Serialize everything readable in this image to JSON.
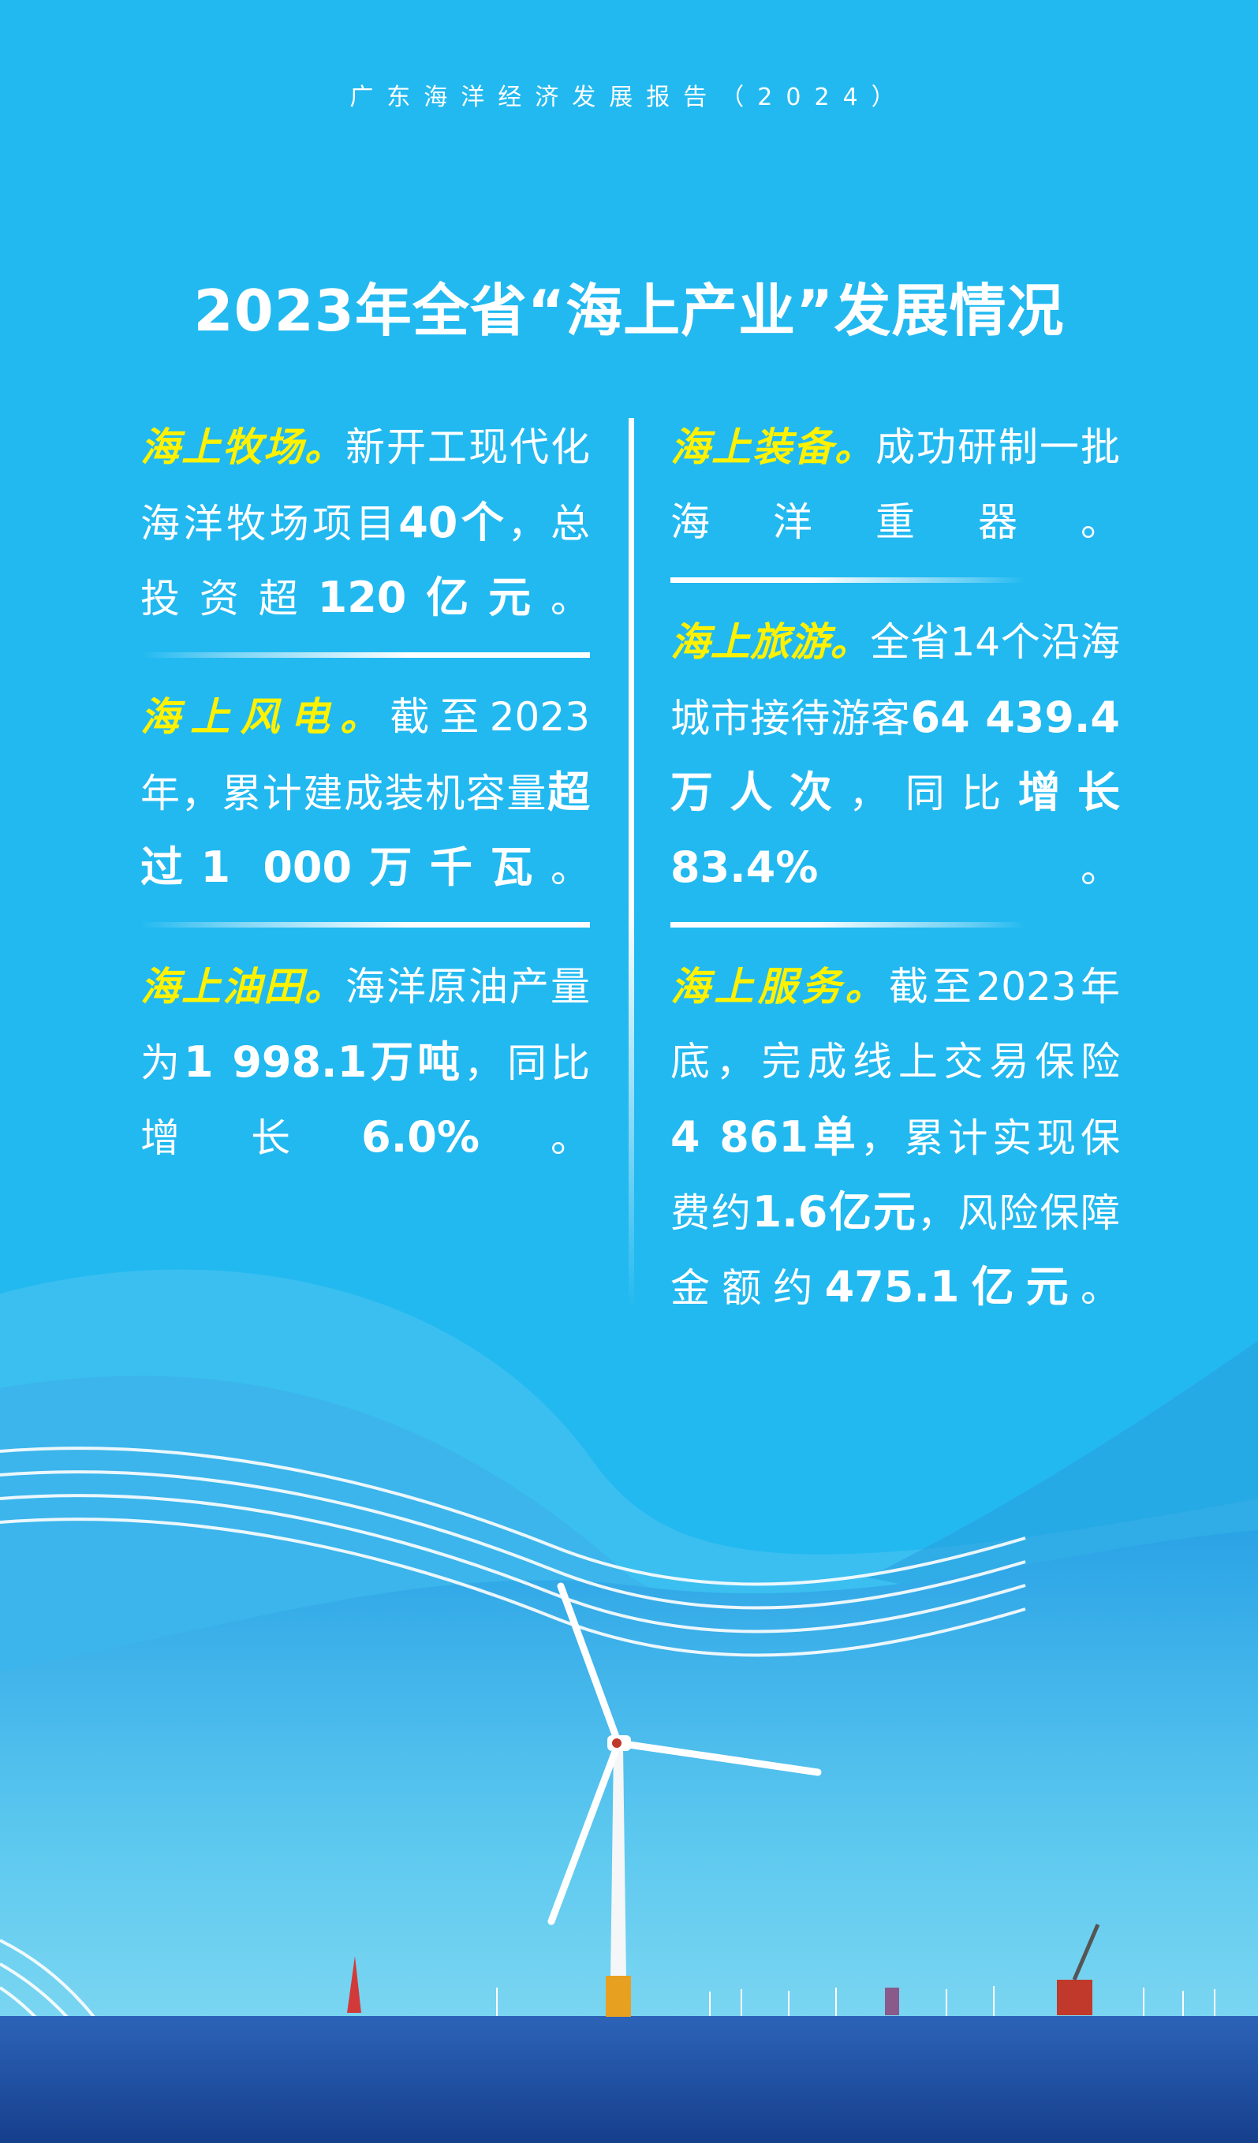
{
  "header": {
    "report": "广东海洋经济发展报告（2024）",
    "title": "2023年全省“海上产业”发展情况"
  },
  "colors": {
    "background": "#22b9f0",
    "highlight": "#fff200",
    "text": "#ffffff",
    "sea": "#1f4fa8"
  },
  "left": [
    {
      "lines": [
        [
          {
            "t": "海上牧场。",
            "s": "h"
          },
          {
            "t": "新开工现代化",
            "s": "n"
          }
        ],
        [
          {
            "t": "海洋牧场项目",
            "s": "n"
          },
          {
            "t": "40个",
            "s": "b"
          },
          {
            "t": "，总",
            "s": "n"
          }
        ],
        [
          {
            "t": "投资超",
            "s": "n"
          },
          {
            "t": "120亿元",
            "s": "b"
          },
          {
            "t": "。",
            "s": "n"
          }
        ]
      ]
    },
    {
      "lines": [
        [
          {
            "t": "海上风电。",
            "s": "h"
          },
          {
            "t": "截至2023",
            "s": "n"
          }
        ],
        [
          {
            "t": "年，累计建成装机容量",
            "s": "n"
          },
          {
            "t": "超",
            "s": "b"
          }
        ],
        [
          {
            "t": "过1 000万千瓦",
            "s": "b"
          },
          {
            "t": "。",
            "s": "n"
          }
        ]
      ]
    },
    {
      "lines": [
        [
          {
            "t": "海上油田。",
            "s": "h"
          },
          {
            "t": "海洋原油产量",
            "s": "n"
          }
        ],
        [
          {
            "t": "为",
            "s": "n"
          },
          {
            "t": "1 998.1万吨",
            "s": "b"
          },
          {
            "t": "，同比",
            "s": "n"
          }
        ],
        [
          {
            "t": "增长",
            "s": "n"
          },
          {
            "t": "6.0%",
            "s": "b"
          },
          {
            "t": "。",
            "s": "n"
          }
        ]
      ]
    }
  ],
  "right": [
    {
      "lines": [
        [
          {
            "t": "海上装备。",
            "s": "h"
          },
          {
            "t": "成功研制一批",
            "s": "n"
          }
        ],
        [
          {
            "t": "海洋重器。",
            "s": "n"
          }
        ]
      ]
    },
    {
      "lines": [
        [
          {
            "t": "海上旅游。",
            "s": "h"
          },
          {
            "t": "全省14个沿海",
            "s": "n"
          }
        ],
        [
          {
            "t": "城市接待游客",
            "s": "n"
          },
          {
            "t": "64 439.4",
            "s": "b"
          }
        ],
        [
          {
            "t": "万人次",
            "s": "b"
          },
          {
            "t": "，同比",
            "s": "n"
          },
          {
            "t": "增长",
            "s": "b"
          }
        ],
        [
          {
            "t": "83.4%",
            "s": "b"
          },
          {
            "t": "。",
            "s": "n"
          }
        ]
      ]
    },
    {
      "lines": [
        [
          {
            "t": "海上服务。",
            "s": "h"
          },
          {
            "t": "截至2023年",
            "s": "n"
          }
        ],
        [
          {
            "t": "底，完成线上交易保险",
            "s": "n"
          }
        ],
        [
          {
            "t": "4 861单",
            "s": "b"
          },
          {
            "t": "，累计实现保",
            "s": "n"
          }
        ],
        [
          {
            "t": "费约",
            "s": "n"
          },
          {
            "t": "1.6亿元",
            "s": "b"
          },
          {
            "t": "，风险保障",
            "s": "n"
          }
        ],
        [
          {
            "t": "金额约",
            "s": "n"
          },
          {
            "t": "475.1亿元",
            "s": "b"
          },
          {
            "t": "。",
            "s": "n"
          }
        ]
      ]
    }
  ]
}
